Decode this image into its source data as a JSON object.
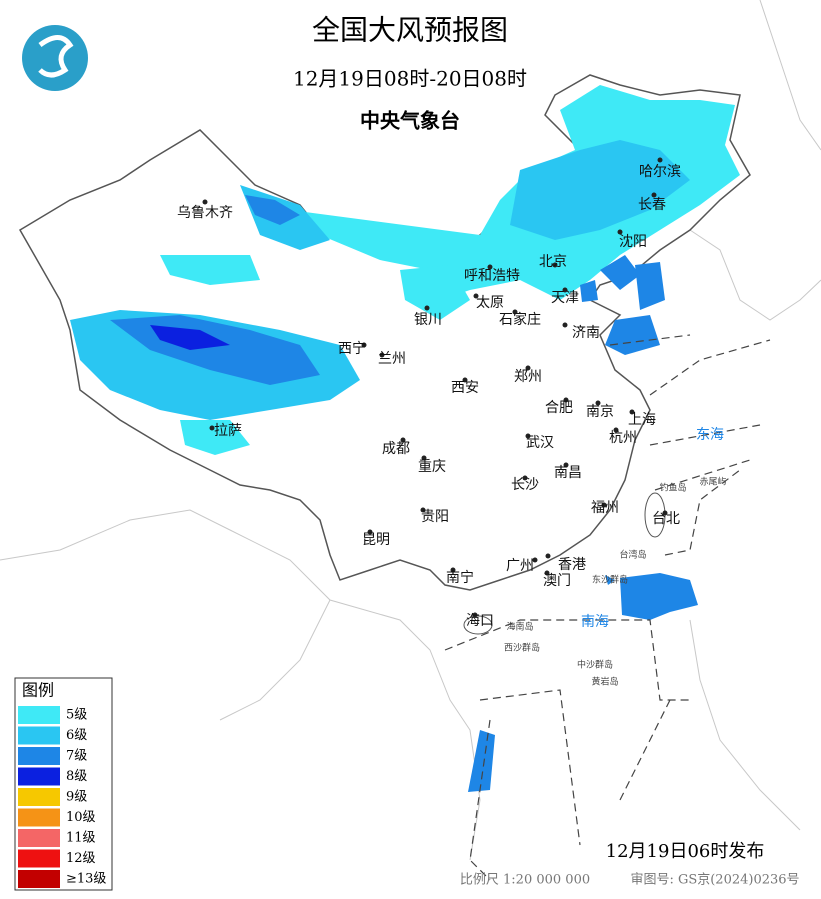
{
  "header": {
    "title": "全国大风预报图",
    "period": "12月19日08时-20日08时",
    "issuer": "中央气象台"
  },
  "legend": {
    "title": "图例",
    "items": [
      {
        "label": "5级",
        "color": "#3fe9f6"
      },
      {
        "label": "6级",
        "color": "#2ac6f2"
      },
      {
        "label": "7级",
        "color": "#1e86e6"
      },
      {
        "label": "8级",
        "color": "#0b20e0"
      },
      {
        "label": "9级",
        "color": "#f6c800"
      },
      {
        "label": "10级",
        "color": "#f59316"
      },
      {
        "label": "11级",
        "color": "#f46666"
      },
      {
        "label": "12级",
        "color": "#ee1111"
      },
      {
        "label": "≥13级",
        "color": "#c20000"
      }
    ]
  },
  "cities": [
    "乌鲁木齐",
    "哈尔滨",
    "长春",
    "沈阳",
    "北京",
    "呼和浩特",
    "天津",
    "太原",
    "石家庄",
    "银川",
    "济南",
    "西宁",
    "兰州",
    "郑州",
    "西安",
    "合肥",
    "南京",
    "上海",
    "杭州",
    "拉萨",
    "成都",
    "武汉",
    "重庆",
    "南昌",
    "长沙",
    "贵阳",
    "福州",
    "台北",
    "昆明",
    "广州",
    "香港",
    "澳门",
    "南宁",
    "海口"
  ],
  "seas": [
    "东海",
    "南海"
  ],
  "islands": [
    "东沙群岛",
    "海南岛",
    "西沙群岛",
    "中沙群岛",
    "黄岩岛",
    "钓鱼岛",
    "赤尾屿",
    "台湾岛"
  ],
  "footer": {
    "issued": "12月19日06时发布",
    "scale": "比例尺 1:20 000 000",
    "map_number": "审图号: GS京(2024)0236号"
  }
}
